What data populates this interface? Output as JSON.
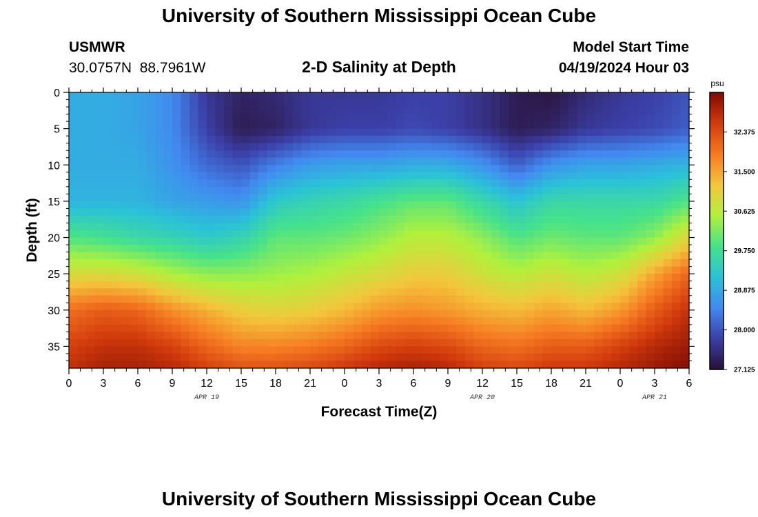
{
  "header": {
    "title": "University of Southern Mississippi Ocean Cube",
    "station_name": "USMWR",
    "station_coords": "30.0757N  88.7961W",
    "plot_title": "2-D Salinity at Depth",
    "model_start_label": "Model Start Time",
    "model_start_value": "04/19/2024 Hour 03"
  },
  "footer": {
    "title": "University of Southern Mississippi Ocean Cube"
  },
  "chart_data": {
    "type": "heatmap",
    "title": "2-D Salinity at Depth",
    "xlabel": "Forecast Time(Z)",
    "ylabel": "Depth (ft)",
    "x_tick_labels": [
      "0",
      "3",
      "6",
      "9",
      "12",
      "15",
      "18",
      "21",
      "0",
      "3",
      "6",
      "9",
      "12",
      "15",
      "18",
      "21",
      "0",
      "3",
      "6"
    ],
    "x_hours_from_start": [
      0,
      3,
      6,
      9,
      12,
      15,
      18,
      21,
      24,
      27,
      30,
      33,
      36,
      39,
      42,
      45,
      48,
      51,
      54
    ],
    "xlim_hours": [
      0,
      54
    ],
    "date_labels": [
      {
        "label": "APR 19",
        "hour": 12
      },
      {
        "label": "APR 20",
        "hour": 36
      },
      {
        "label": "APR 21",
        "hour": 51
      }
    ],
    "y_ticks": [
      0,
      5,
      10,
      15,
      20,
      25,
      30,
      35
    ],
    "ylim_ft": [
      0,
      38
    ],
    "colorbar": {
      "unit": "psu",
      "min": 27.125,
      "max": 33.25,
      "tick_values": [
        27.125,
        28.0,
        28.875,
        29.75,
        30.625,
        31.5,
        32.375
      ],
      "tick_labels": [
        "27.125",
        "28.000",
        "28.875",
        "29.750",
        "30.625",
        "31.500",
        "32.375"
      ]
    },
    "time_hours": [
      0,
      3,
      6,
      9,
      12,
      15,
      18,
      21,
      24,
      27,
      30,
      33,
      36,
      39,
      42,
      45,
      48,
      51,
      54
    ],
    "depth_levels_ft": [
      0,
      5,
      10,
      15,
      20,
      25,
      30,
      35,
      38
    ],
    "salinity_psu": [
      [
        28.9,
        28.9,
        28.8,
        28.5,
        27.7,
        27.4,
        27.5,
        27.7,
        27.7,
        27.7,
        27.8,
        27.8,
        27.6,
        27.3,
        27.2,
        27.5,
        27.7,
        27.8,
        28.0
      ],
      [
        28.9,
        28.9,
        28.8,
        28.5,
        27.8,
        27.3,
        27.4,
        27.7,
        27.8,
        27.8,
        27.9,
        27.8,
        27.6,
        27.3,
        27.4,
        27.7,
        27.8,
        27.9,
        28.1
      ],
      [
        28.9,
        28.9,
        28.9,
        28.6,
        28.2,
        28.0,
        28.4,
        28.7,
        28.8,
        28.8,
        28.9,
        28.9,
        28.6,
        28.1,
        28.6,
        28.8,
        28.8,
        28.9,
        29.0
      ],
      [
        29.0,
        29.0,
        29.0,
        28.8,
        28.7,
        28.6,
        29.3,
        29.5,
        29.6,
        29.8,
        30.0,
        30.0,
        29.6,
        29.2,
        29.6,
        29.6,
        29.6,
        29.6,
        29.9
      ],
      [
        29.9,
        29.8,
        29.6,
        29.5,
        29.3,
        29.5,
        30.0,
        30.0,
        30.1,
        30.3,
        30.6,
        30.6,
        30.3,
        29.9,
        30.1,
        30.0,
        30.0,
        30.3,
        31.0
      ],
      [
        30.9,
        30.9,
        30.8,
        30.5,
        30.3,
        30.3,
        30.4,
        30.5,
        30.7,
        30.9,
        31.1,
        31.1,
        30.8,
        30.6,
        30.8,
        30.6,
        30.8,
        31.5,
        32.1
      ],
      [
        32.0,
        32.2,
        32.1,
        31.7,
        31.4,
        31.1,
        31.0,
        31.1,
        31.3,
        31.6,
        31.7,
        31.6,
        31.4,
        31.3,
        31.5,
        31.3,
        31.6,
        32.2,
        32.7
      ],
      [
        32.5,
        32.7,
        32.7,
        32.5,
        32.1,
        31.8,
        31.8,
        31.9,
        32.1,
        32.4,
        32.5,
        32.4,
        32.1,
        32.0,
        32.2,
        32.2,
        32.5,
        32.8,
        33.0
      ],
      [
        32.7,
        32.9,
        32.9,
        32.8,
        32.5,
        32.3,
        32.3,
        32.4,
        32.6,
        32.8,
        32.9,
        32.8,
        32.5,
        32.4,
        32.6,
        32.6,
        32.8,
        33.0,
        33.2
      ]
    ],
    "colormap": [
      "#2a1136",
      "#3b3fa7",
      "#4289f0",
      "#2ac2d8",
      "#46e28a",
      "#b1f13c",
      "#f3c63c",
      "#f67a22",
      "#d23a0c",
      "#7d0a04"
    ]
  }
}
